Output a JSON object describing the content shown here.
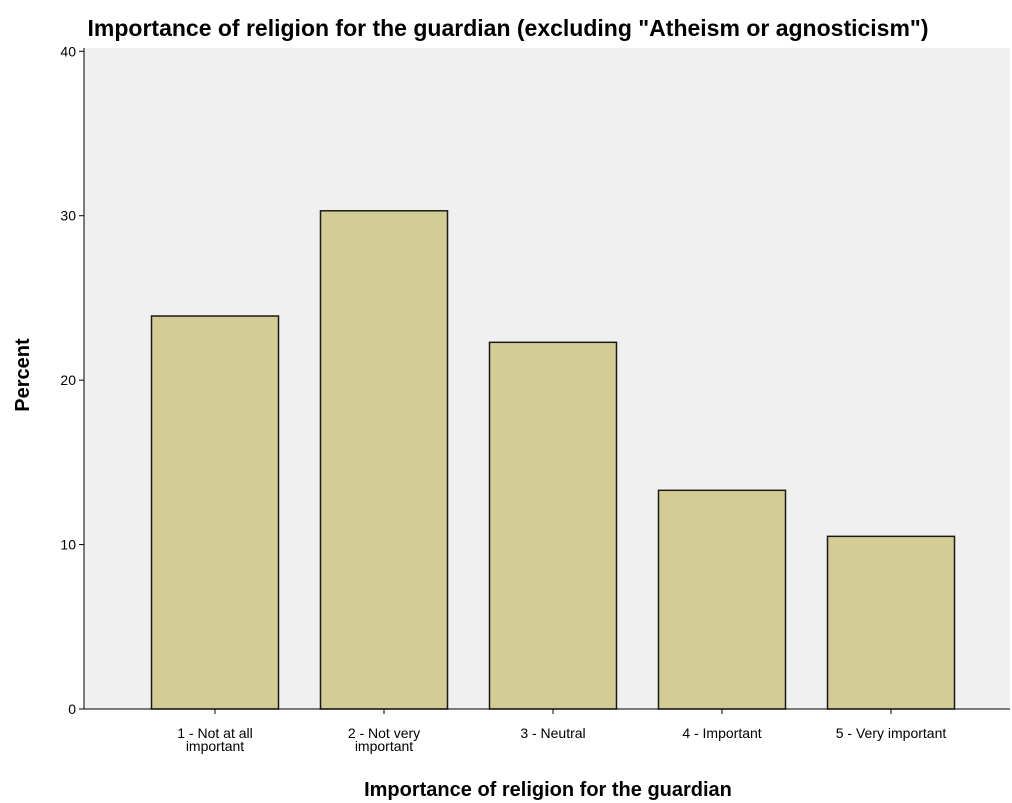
{
  "chart_data": {
    "type": "bar",
    "title": "Importance of religion for the guardian (excluding \"Atheism or agnosticism\")",
    "xlabel": "Importance of religion for the guardian",
    "ylabel": "Percent",
    "categories": [
      [
        "1 - Not at all",
        "important"
      ],
      [
        "2 - Not very",
        "important"
      ],
      [
        "3 - Neutral"
      ],
      [
        "4 - Important"
      ],
      [
        "5 - Very important"
      ]
    ],
    "values": [
      23.9,
      30.3,
      22.3,
      13.3,
      10.5
    ],
    "yticks": [
      0,
      10,
      20,
      30,
      40
    ],
    "ylim": [
      0,
      40.2
    ],
    "grid": false,
    "colors": {
      "bar_fill": "#d3cd95",
      "bar_stroke": "#1a1a1a",
      "plot_background": "#f0f0f0",
      "axis": "#000000"
    }
  }
}
